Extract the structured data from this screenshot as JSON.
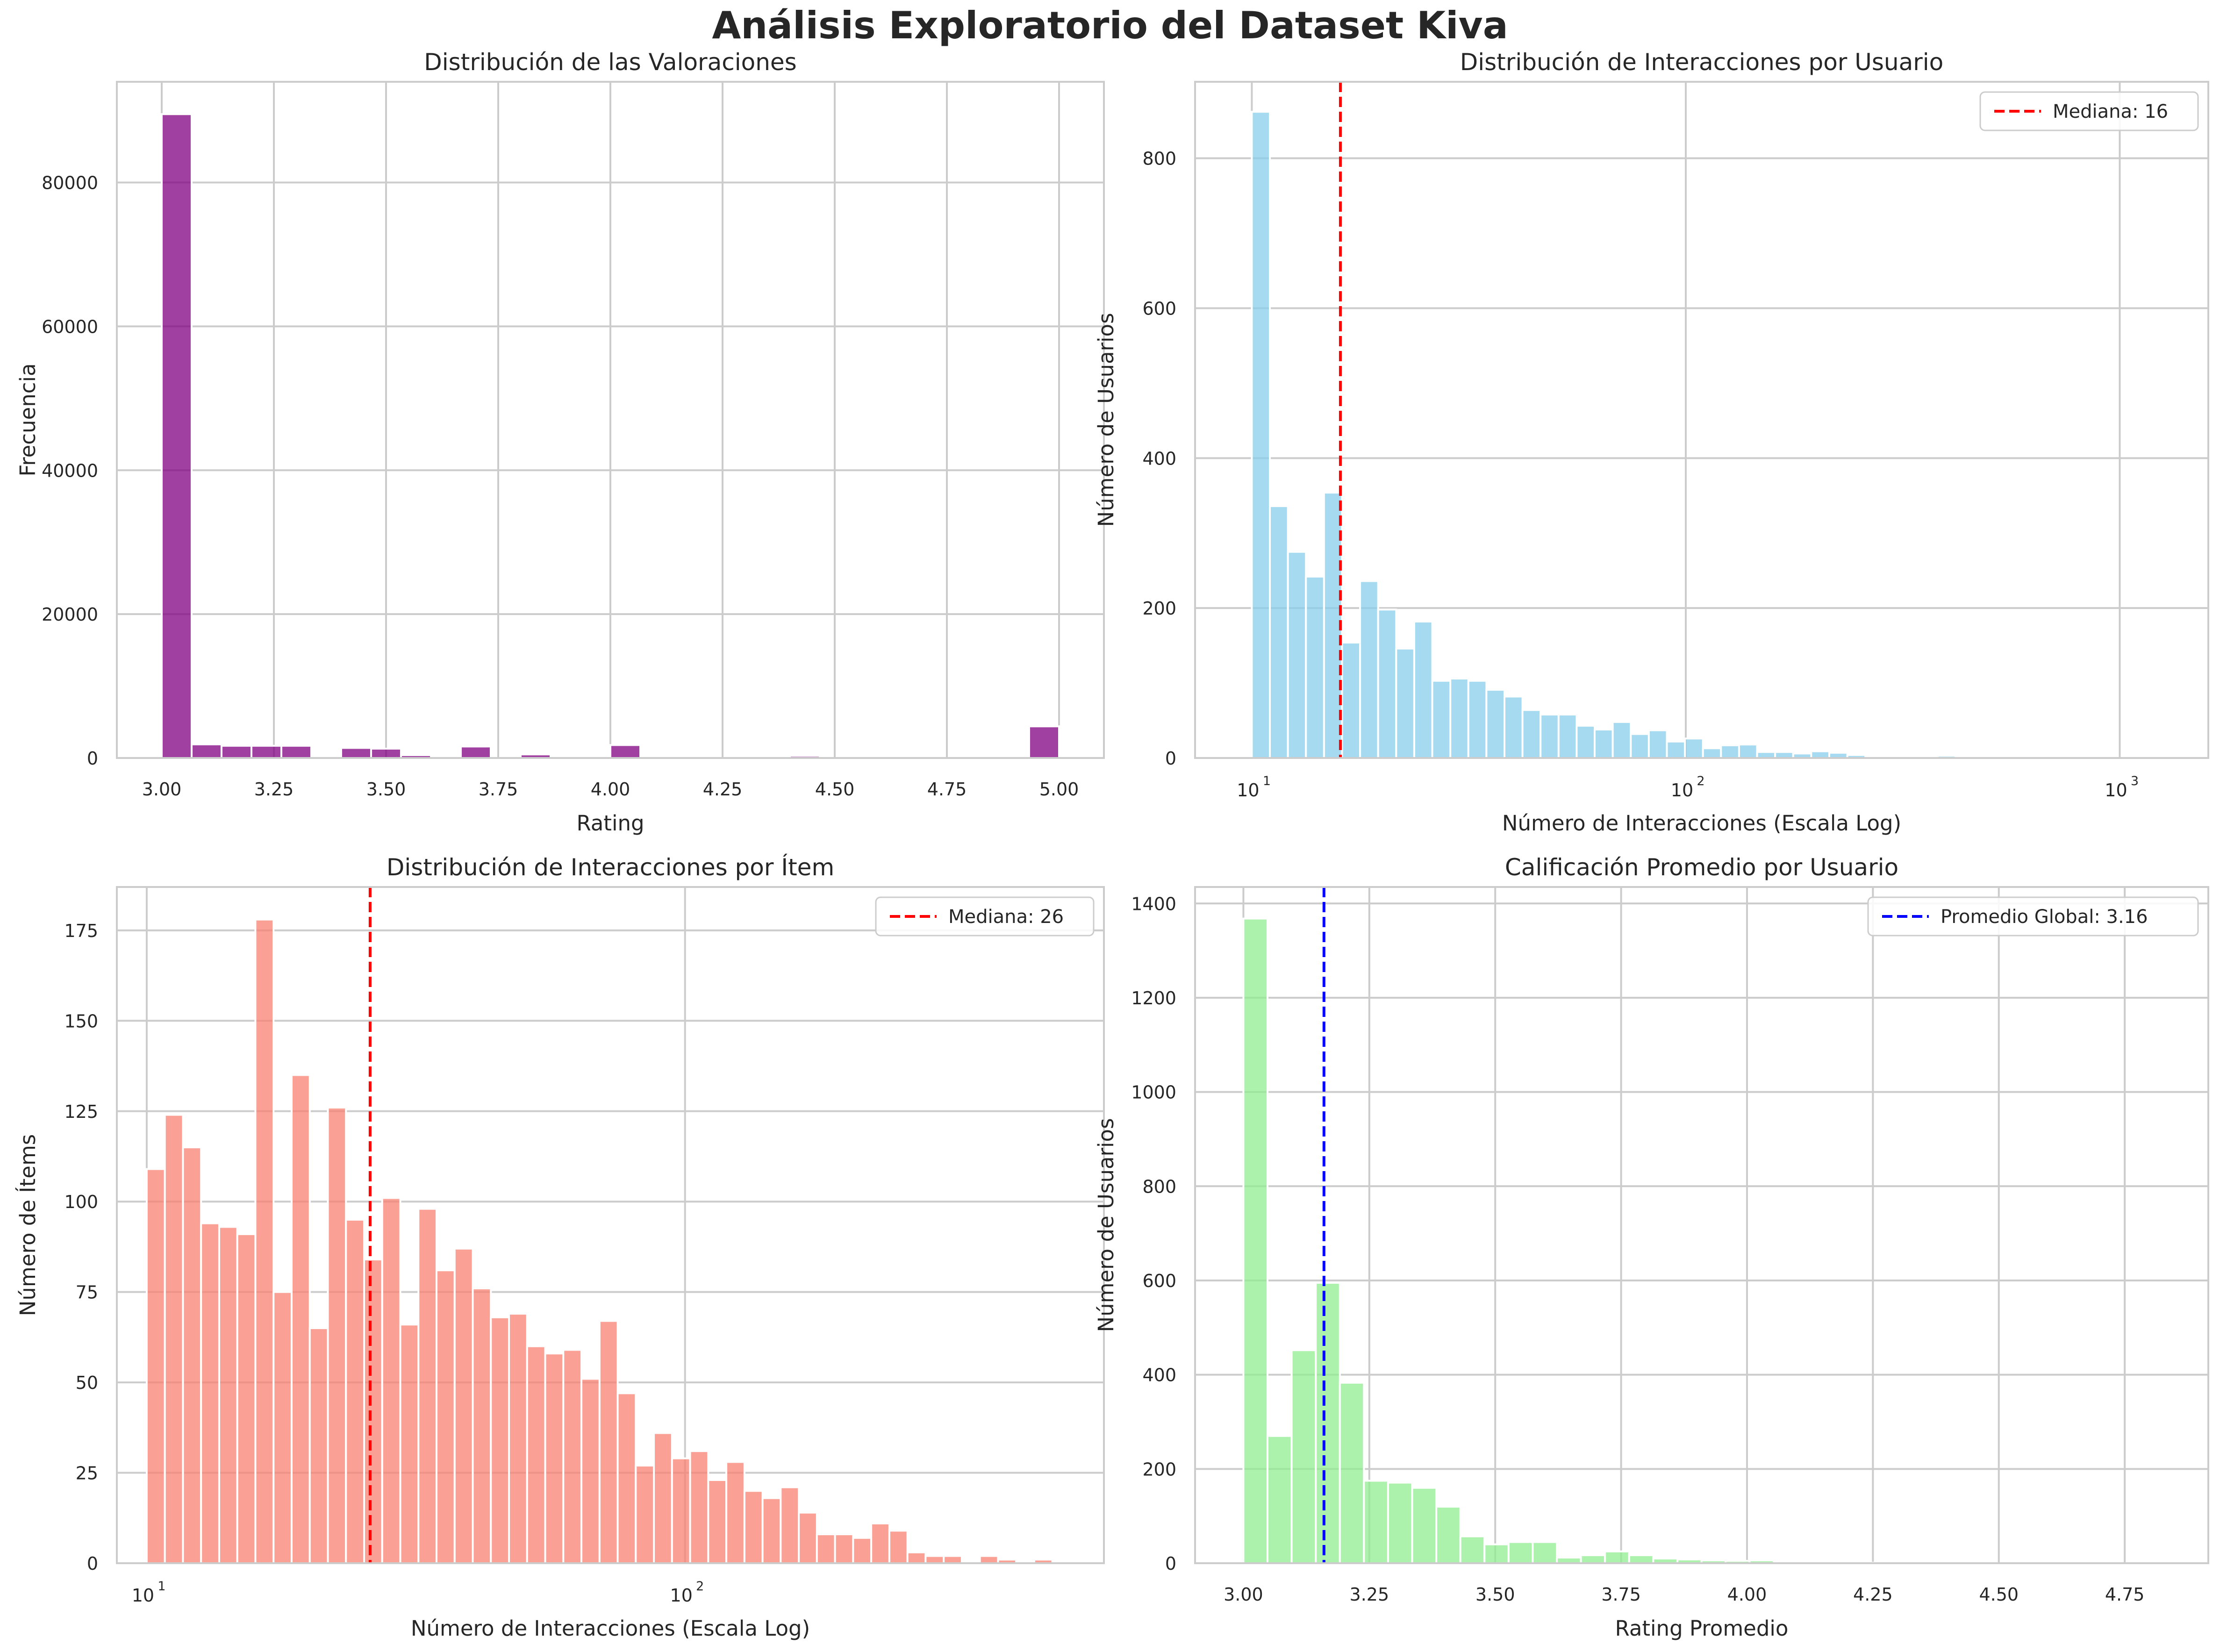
{
  "page": {
    "suptitle": "Análisis Exploratorio del Dataset Kiva"
  },
  "chart_data": [
    {
      "type": "bar",
      "title": "Distribución de las Valoraciones",
      "xlabel": "Rating",
      "ylabel": "Frecuencia",
      "color": "#800080",
      "xscale": "linear",
      "xlim": [
        2.9,
        5.1
      ],
      "ylim": [
        0,
        94000
      ],
      "xticks": [
        3.0,
        3.25,
        3.5,
        3.75,
        4.0,
        4.25,
        4.5,
        4.75,
        5.0
      ],
      "xtick_labels": [
        "3.00",
        "3.25",
        "3.50",
        "3.75",
        "4.00",
        "4.25",
        "4.50",
        "4.75",
        "5.00"
      ],
      "yticks": [
        0,
        20000,
        40000,
        60000,
        80000
      ],
      "ytick_labels": [
        "0",
        "20000",
        "40000",
        "60000",
        "80000"
      ],
      "bin_edges": [
        3.0,
        3.0667,
        3.1333,
        3.2,
        3.2667,
        3.3333,
        3.4,
        3.4667,
        3.5333,
        3.6,
        3.6667,
        3.7333,
        3.8,
        3.8667,
        3.9333,
        4.0,
        4.0667,
        4.1333,
        4.2,
        4.2667,
        4.3333,
        4.4,
        4.4667,
        4.5333,
        4.6,
        4.6667,
        4.7333,
        4.8,
        4.8667,
        4.9333,
        5.0
      ],
      "values": [
        89500,
        1900,
        1700,
        1700,
        1700,
        0,
        1400,
        1300,
        400,
        0,
        1600,
        0,
        500,
        0,
        0,
        1800,
        0,
        0,
        0,
        0,
        0,
        300,
        0,
        0,
        0,
        0,
        0,
        0,
        0,
        4400
      ],
      "legend": null
    },
    {
      "type": "bar",
      "title": "Distribución de Interacciones por Usuario",
      "xlabel": "Número de Interacciones (Escala Log)",
      "ylabel": "Número de Usuarios",
      "color": "#87ceeb",
      "xscale": "log",
      "xlim": [
        7.4,
        1600
      ],
      "ylim": [
        0,
        902
      ],
      "xticks": [
        10,
        100,
        1000
      ],
      "xtick_bases": [
        "10",
        "10",
        "10"
      ],
      "xtick_exps": [
        "1",
        "2",
        "3"
      ],
      "yticks": [
        0,
        200,
        400,
        600,
        800
      ],
      "ytick_labels": [
        "0",
        "200",
        "400",
        "600",
        "800"
      ],
      "bin_edges_log": {
        "start": 10,
        "end": 1200,
        "count": 50
      },
      "values": [
        862,
        336,
        275,
        242,
        354,
        154,
        236,
        198,
        146,
        182,
        103,
        106,
        103,
        91,
        82,
        64,
        58,
        58,
        43,
        38,
        48,
        32,
        37,
        22,
        26,
        13,
        17,
        18,
        8,
        8,
        6,
        9,
        7,
        4,
        0,
        0,
        0,
        0,
        3,
        0,
        0,
        0,
        0,
        0,
        0,
        0,
        0,
        0,
        0,
        1
      ],
      "vline": {
        "x": 16,
        "color": "#ff0000"
      },
      "legend": {
        "label": "Mediana: 16",
        "color": "#ff0000",
        "position": "top-right"
      }
    },
    {
      "type": "bar",
      "title": "Distribución de Interacciones por Ítem",
      "xlabel": "Número de Interacciones (Escala Log)",
      "ylabel": "Número de Ítems",
      "color": "#fa8072",
      "xscale": "log",
      "xlim": [
        8.8,
        600
      ],
      "ylim": [
        0,
        187
      ],
      "xticks": [
        10,
        100
      ],
      "xtick_bases": [
        "10",
        "10"
      ],
      "xtick_exps": [
        "1",
        "2"
      ],
      "yticks": [
        0,
        25,
        50,
        75,
        100,
        125,
        150,
        175
      ],
      "ytick_labels": [
        "0",
        "25",
        "50",
        "75",
        "100",
        "125",
        "150",
        "175"
      ],
      "bin_edges_log": {
        "start": 10,
        "end": 520,
        "count": 51
      },
      "values": [
        109,
        124,
        115,
        94,
        93,
        91,
        178,
        75,
        135,
        65,
        126,
        95,
        84,
        101,
        66,
        98,
        81,
        87,
        76,
        68,
        69,
        60,
        58,
        59,
        51,
        67,
        47,
        27,
        36,
        29,
        31,
        23,
        28,
        20,
        18,
        21,
        14,
        8,
        8,
        7,
        11,
        9,
        3,
        2,
        2,
        0,
        2,
        1,
        0,
        1,
        0
      ],
      "vline": {
        "x": 26,
        "color": "#ff0000"
      },
      "legend": {
        "label": "Mediana: 26",
        "color": "#ff0000",
        "position": "top-right"
      }
    },
    {
      "type": "bar",
      "title": "Calificación Promedio por Usuario",
      "xlabel": "Rating Promedio",
      "ylabel": "Número de Usuarios",
      "color": "#90ee90",
      "xscale": "linear",
      "xlim": [
        2.904,
        4.916
      ],
      "ylim": [
        0,
        1435
      ],
      "xticks": [
        3.0,
        3.25,
        3.5,
        3.75,
        4.0,
        4.25,
        4.5,
        4.75
      ],
      "xtick_labels": [
        "3.00",
        "3.25",
        "3.50",
        "3.75",
        "4.00",
        "4.25",
        "4.50",
        "4.75"
      ],
      "yticks": [
        0,
        200,
        400,
        600,
        800,
        1000,
        1200,
        1400
      ],
      "ytick_labels": [
        "0",
        "200",
        "400",
        "600",
        "800",
        "1000",
        "1200",
        "1400"
      ],
      "bin_edges_range": {
        "start": 3.0,
        "width": 0.04787,
        "count": 40
      },
      "values": [
        1368,
        270,
        452,
        595,
        383,
        175,
        171,
        160,
        120,
        57,
        40,
        45,
        45,
        12,
        17,
        25,
        17,
        10,
        8,
        6,
        5,
        6,
        3,
        2,
        2,
        2,
        1,
        1,
        1,
        1,
        0,
        0,
        0,
        0,
        0,
        0,
        0,
        0,
        0,
        1
      ],
      "vline": {
        "x": 3.16,
        "color": "#0000ff"
      },
      "legend": {
        "label": "Promedio Global: 3.16",
        "color": "#0000ff",
        "position": "top-right"
      }
    }
  ]
}
